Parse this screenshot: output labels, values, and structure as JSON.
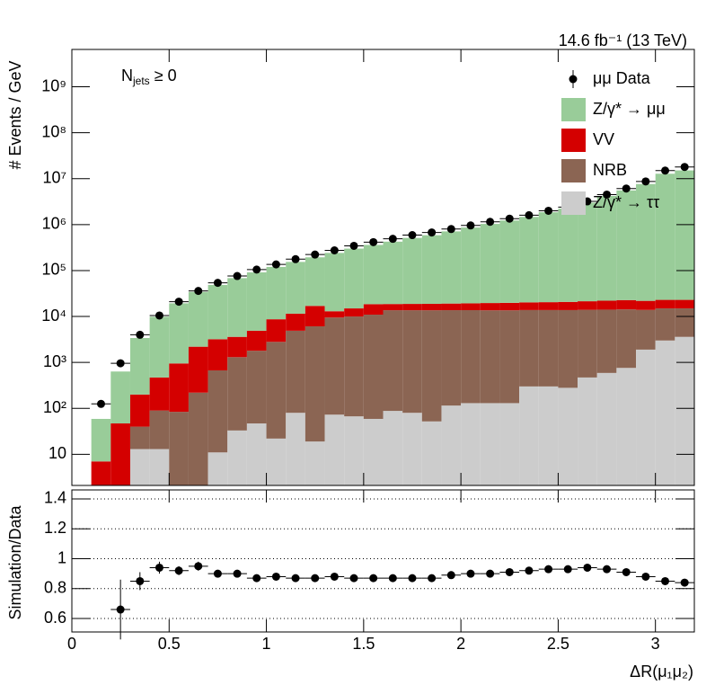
{
  "chart_data": [
    {
      "type": "stacked-histogram",
      "title": "14.6 fb⁻¹ (13 TeV)",
      "annotation": [
        "N",
        "jets",
        " ≥ 0"
      ],
      "ylabel": "# Events / GeV",
      "log_y": true,
      "legend": "top-right",
      "bins": [
        0.1,
        0.2,
        0.3,
        0.4,
        0.5,
        0.6,
        0.7,
        0.8,
        0.9,
        1,
        1.1,
        1.2,
        1.3,
        1.4,
        1.5,
        1.6,
        1.7,
        1.8,
        1.9,
        2,
        2.1,
        2.2,
        2.3,
        2.4,
        2.5,
        2.6,
        2.7,
        2.8,
        2.9,
        3,
        3.1,
        3.2
      ],
      "series": [
        {
          "name": "Z/γ* → ττ",
          "color": "#cccccc",
          "values": [
            0,
            0,
            13,
            13,
            0,
            0,
            11,
            33,
            47,
            22,
            80,
            19,
            73,
            67,
            59,
            88,
            80,
            52,
            115,
            130,
            130,
            130,
            300,
            300,
            280,
            470,
            590,
            760,
            1900,
            3000,
            3600
          ]
        },
        {
          "name": "NRB",
          "color": "#8b6553",
          "values": [
            0,
            0,
            27,
            77,
            84,
            220,
            660,
            1270,
            1750,
            2780,
            4820,
            6080,
            9430,
            9930,
            10900,
            13600,
            13600,
            13600,
            13600,
            13600,
            13500,
            13500,
            13500,
            13500,
            13500,
            13500,
            13500,
            13500,
            12000,
            12000,
            11400
          ]
        },
        {
          "name": "VV",
          "color": "#d40000",
          "values": [
            7,
            47,
            160,
            380,
            866,
            1980,
            2530,
            2300,
            3100,
            5900,
            6600,
            10900,
            3500,
            5000,
            7600,
            5000,
            5100,
            5200,
            5400,
            5600,
            6000,
            6200,
            6500,
            6700,
            7000,
            7500,
            8000,
            8500,
            8000,
            8000,
            8000
          ]
        },
        {
          "name": "Z/γ* → μμ",
          "color": "#99cc99",
          "values": [
            52,
            587,
            3200,
            9400,
            18400,
            32000,
            45400,
            64800,
            86500,
            111000,
            142500,
            177000,
            229000,
            285000,
            342000,
            407000,
            494000,
            568000,
            693000,
            845000,
            1015000,
            1210000,
            1450000,
            1840000,
            2210000,
            2980000,
            4180000,
            5530000,
            7620000,
            12780000,
            15100000
          ]
        }
      ],
      "data": {
        "name": "μμ Data",
        "color": "#000000",
        "values": [
          125,
          960,
          4000,
          10500,
          21000,
          36000,
          54000,
          76000,
          105000,
          136000,
          177000,
          223000,
          275000,
          345000,
          415000,
          490000,
          590000,
          675000,
          800000,
          960000,
          1150000,
          1350000,
          1600000,
          2000000,
          2400000,
          3200000,
          4500000,
          6100000,
          8700000,
          15000000,
          18000000
        ]
      },
      "xlim": [
        0,
        3.2
      ],
      "xticks": [
        0,
        0.5,
        1,
        1.5,
        2,
        2.5,
        3
      ],
      "ylim": [
        2.1,
        6500000000
      ],
      "yticks": [
        10,
        {
          "value": 100,
          "label": "10²"
        },
        {
          "value": 1000,
          "label": "10³"
        },
        {
          "value": 10000,
          "label": "10⁴"
        },
        {
          "value": 100000,
          "label": "10⁵"
        },
        {
          "value": 1000000,
          "label": "10⁶"
        },
        {
          "value": 10000000,
          "label": "10⁷"
        },
        {
          "value": 100000000,
          "label": "10⁸"
        },
        {
          "value": 1000000000,
          "label": "10⁹"
        }
      ]
    },
    {
      "type": "ratio",
      "xlabel": "ΔR(μ₁μ₂)",
      "ylabel": "Simulation/Data",
      "grid": true,
      "color": "#000000",
      "x": [
        0.15,
        0.25,
        0.35,
        0.45,
        0.55,
        0.65,
        0.75,
        0.85,
        0.95,
        1.05,
        1.15,
        1.25,
        1.35,
        1.45,
        1.55,
        1.65,
        1.75,
        1.85,
        1.95,
        2.05,
        2.15,
        2.25,
        2.35,
        2.45,
        2.55,
        2.65,
        2.75,
        2.85,
        2.95,
        3.05,
        3.15
      ],
      "values": [
        null,
        0.66,
        0.85,
        0.94,
        0.92,
        0.95,
        0.9,
        0.9,
        0.87,
        0.88,
        0.87,
        0.87,
        0.88,
        0.87,
        0.87,
        0.87,
        0.87,
        0.87,
        0.89,
        0.9,
        0.9,
        0.91,
        0.92,
        0.93,
        0.93,
        0.94,
        0.93,
        0.91,
        0.88,
        0.85,
        0.84
      ],
      "errors": [
        null,
        0.2,
        0.06,
        0.04,
        0.03,
        0.03,
        0.015,
        0.01,
        0.01,
        0.01,
        0.01,
        0.01,
        0.01,
        0.01,
        0.01,
        0.01,
        0.01,
        0.01,
        0.01,
        0.01,
        0.01,
        0.01,
        0.01,
        0.01,
        0.01,
        0.01,
        0.01,
        0.01,
        0.01,
        0.01,
        0.01
      ],
      "xlim": [
        0,
        3.2
      ],
      "xticks": [
        0,
        0.5,
        1,
        1.5,
        2,
        2.5,
        3
      ],
      "ylim": [
        0.51,
        1.46
      ],
      "yticks": [
        0.6,
        0.8,
        1,
        1.2,
        1.4
      ]
    }
  ]
}
